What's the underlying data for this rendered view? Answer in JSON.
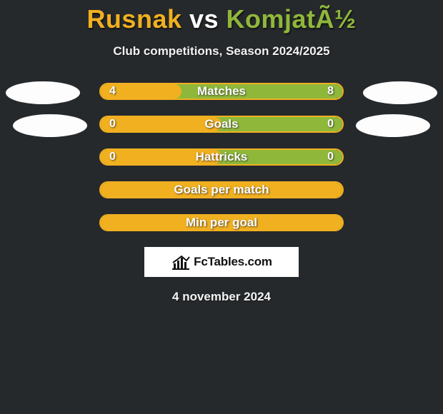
{
  "title_left": "Rusnak",
  "title_vs": " vs ",
  "title_right": "KomjatÃ½",
  "title_color_left": "#f0b020",
  "title_color_right": "#8fb83a",
  "subtitle": "Club competitions, Season 2024/2025",
  "date": "4 november 2024",
  "watermark_text": "FcTables.com",
  "rows": [
    {
      "name": "matches",
      "label": "Matches",
      "left_value": "4",
      "right_value": "8",
      "left_pct": 33.3,
      "border_color": "#f0b020",
      "left_fill_color": "#f0b020",
      "right_fill_color": "#8fb83a",
      "show_avatars": true,
      "avatar_style": "first"
    },
    {
      "name": "goals",
      "label": "Goals",
      "left_value": "0",
      "right_value": "0",
      "left_pct": 50,
      "border_color": "#f0b020",
      "left_fill_color": "#f0b020",
      "right_fill_color": "#8fb83a",
      "show_avatars": true,
      "avatar_style": "second"
    },
    {
      "name": "hattricks",
      "label": "Hattricks",
      "left_value": "0",
      "right_value": "0",
      "left_pct": 50,
      "border_color": "#f0b020",
      "left_fill_color": "#f0b020",
      "right_fill_color": "#8fb83a",
      "show_avatars": false
    },
    {
      "name": "goals-per-match",
      "label": "Goals per match",
      "left_value": "",
      "right_value": "",
      "left_pct": 100,
      "border_color": "#f0b020",
      "left_fill_color": "#f0b020",
      "right_fill_color": "#8fb83a",
      "show_avatars": false
    },
    {
      "name": "min-per-goal",
      "label": "Min per goal",
      "left_value": "",
      "right_value": "",
      "left_pct": 100,
      "border_color": "#f0b020",
      "left_fill_color": "#f0b020",
      "right_fill_color": "#8fb83a",
      "show_avatars": false
    }
  ],
  "background_color": "#26292c",
  "avatar_color": "#fdfdfd"
}
